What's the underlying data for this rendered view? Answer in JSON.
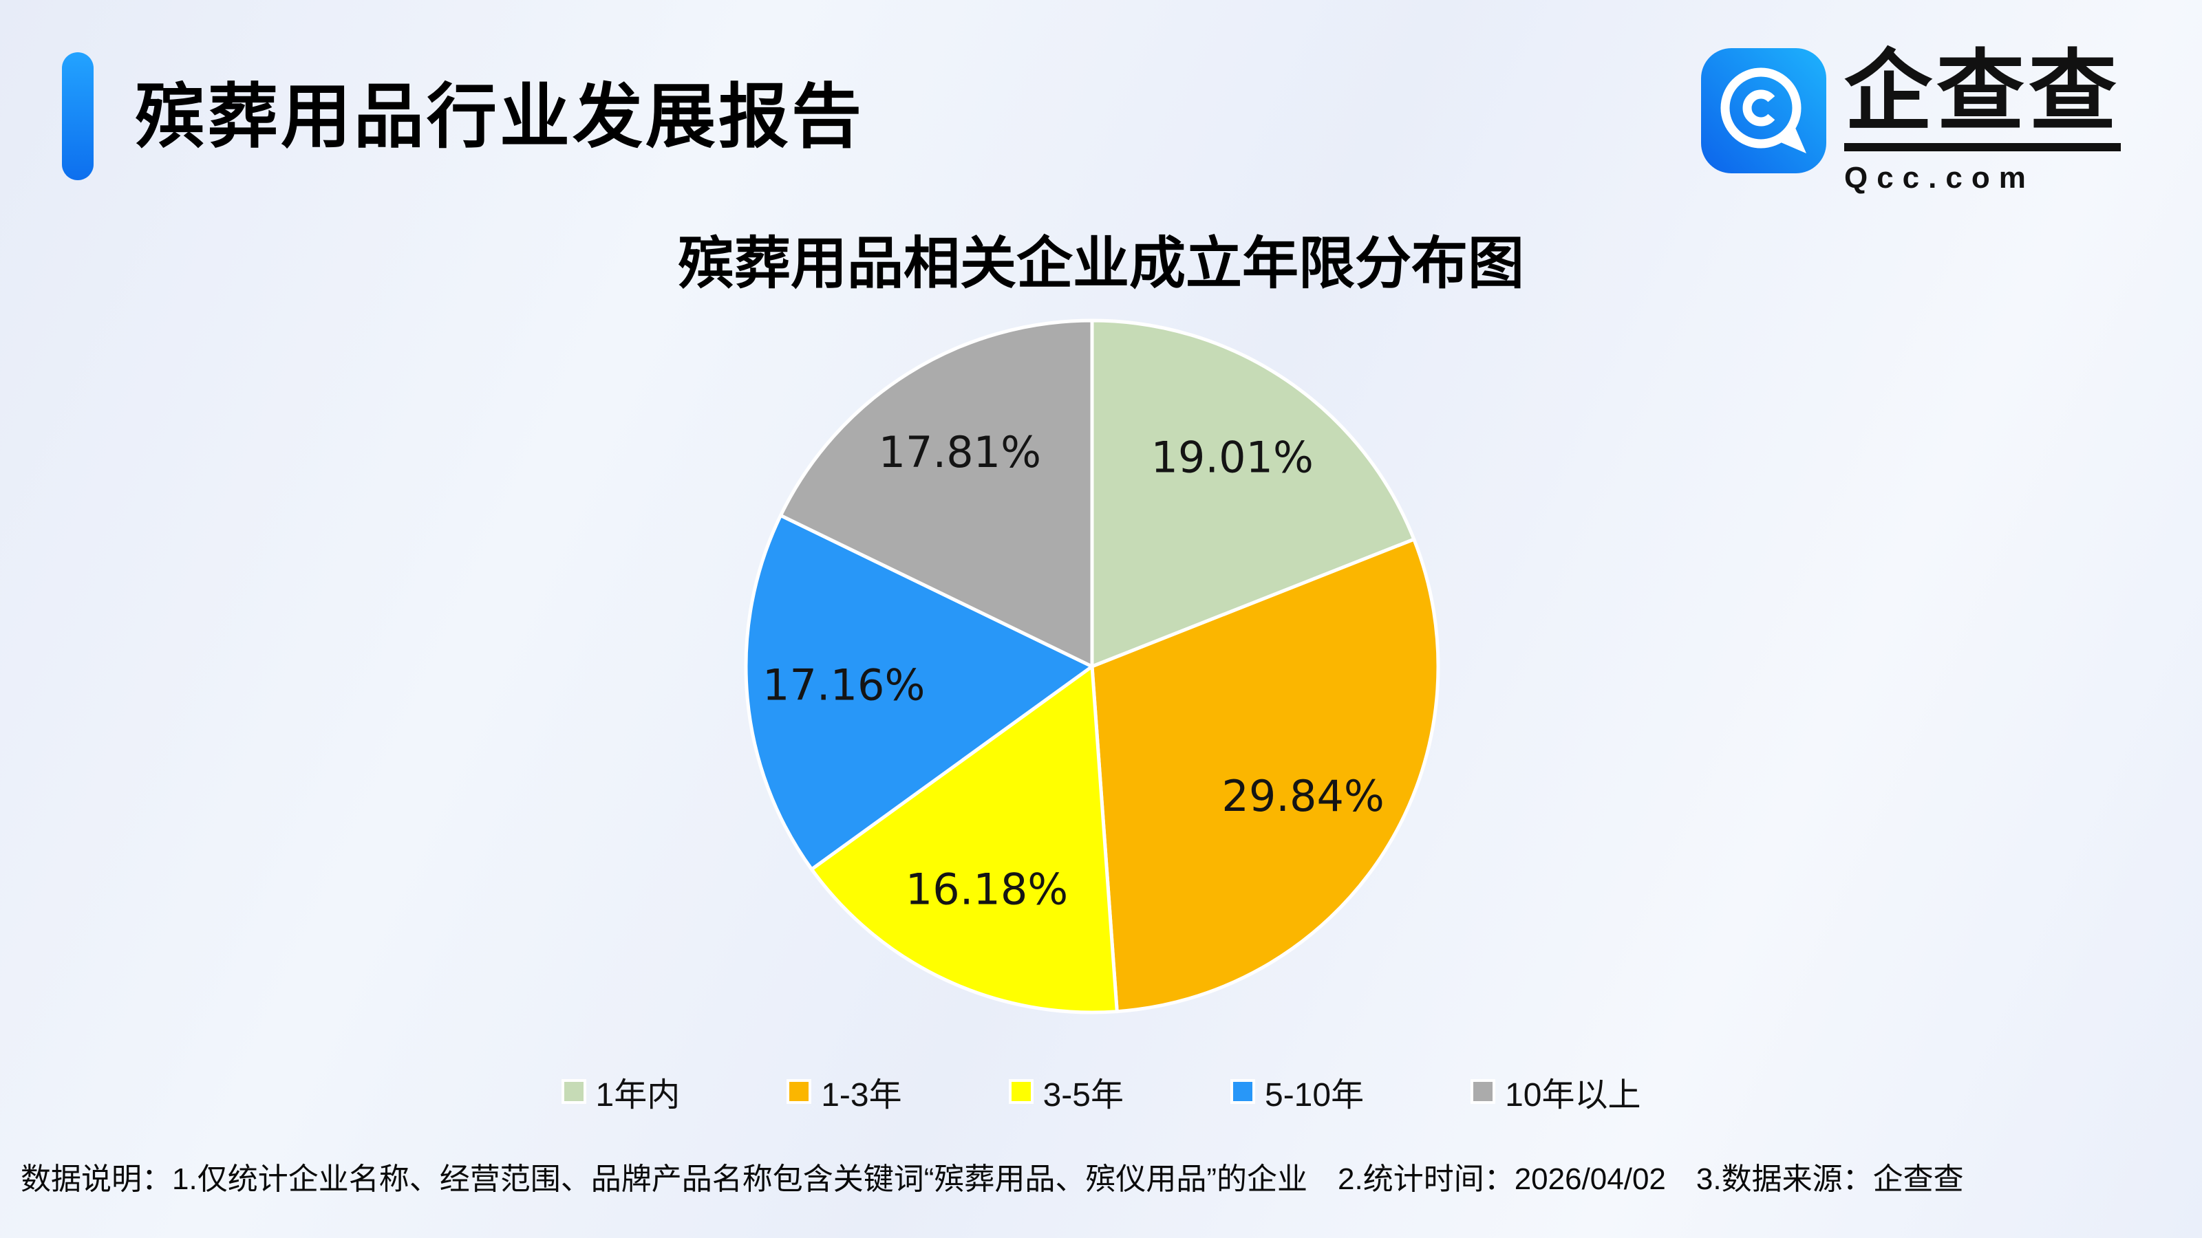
{
  "header": {
    "title": "殡葬用品行业发展报告",
    "logo": {
      "brand_text": "企查查",
      "domain_text": "Qcc.com"
    }
  },
  "chart_data": {
    "type": "pie",
    "title": "殡葬用品相关企业成立年限分布图",
    "categories": [
      "1年内",
      "1-3年",
      "3-5年",
      "5-10年",
      "10年以上"
    ],
    "values": [
      19.01,
      29.84,
      16.18,
      17.16,
      17.81
    ],
    "labels": [
      "19.01%",
      "29.84%",
      "16.18%",
      "17.16%",
      "17.81%"
    ],
    "colors": [
      "#c6dbb6",
      "#fbb600",
      "#ffff00",
      "#2897f8",
      "#ababab"
    ],
    "start_angle_deg": 0,
    "direction": "clockwise",
    "legend_position": "bottom",
    "slice_border_color": "#ffffff"
  },
  "footer": {
    "note": "数据说明：1.仅统计企业名称、经营范围、品牌产品名称包含关键词“殡葬用品、殡仪用品”的企业　2.统计时间：2026/04/02　3.数据来源：企查查"
  },
  "colors": {
    "accent_bar_top": "#23a3ff",
    "accent_bar_bottom": "#0d6fee",
    "logo_blue_dark": "#0c64eb",
    "logo_blue_light": "#1eb2fd",
    "background": "#edf1fa"
  }
}
